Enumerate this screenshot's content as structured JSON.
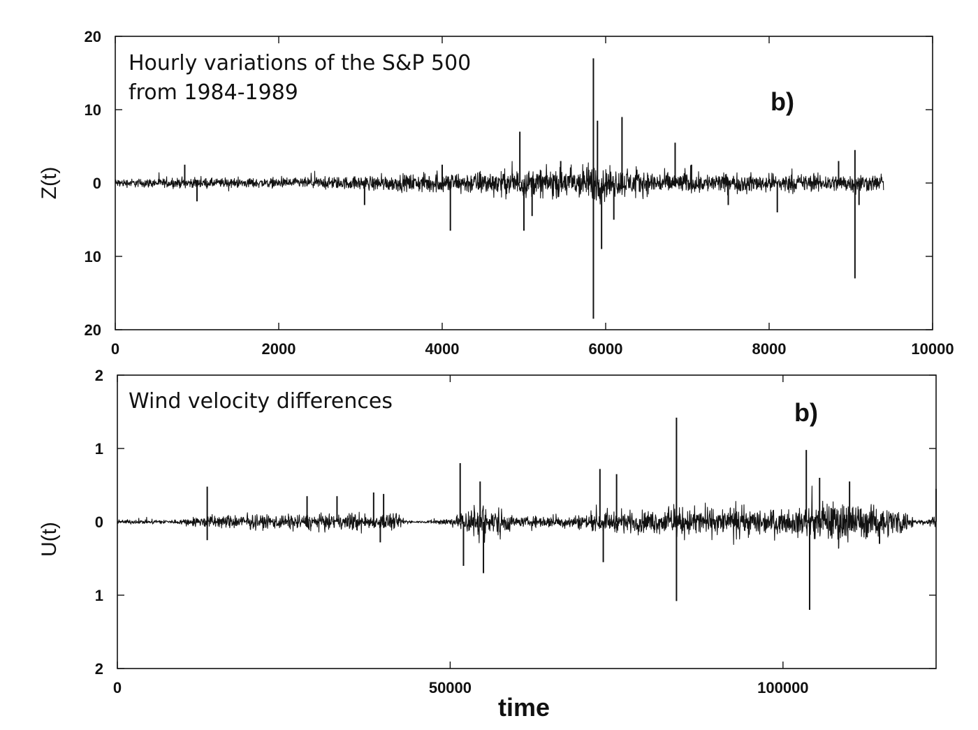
{
  "chart_data": [
    {
      "type": "line",
      "title": "",
      "annotation_lines": [
        "Hourly variations of the S&P 500",
        "from 1984-1989"
      ],
      "panel_label": "b)",
      "xlabel": "",
      "ylabel": "Z(t)",
      "xlim": [
        0,
        10000
      ],
      "ylim": [
        -20,
        20
      ],
      "xticks": [
        0,
        2000,
        4000,
        6000,
        8000,
        10000
      ],
      "xtick_labels": [
        "0",
        "2000",
        "4000",
        "6000",
        "8000",
        "10000"
      ],
      "yticks": [
        20,
        10,
        0,
        -10,
        -20
      ],
      "ytick_labels": [
        "20",
        "10",
        "0",
        "10",
        "20"
      ],
      "grid": false,
      "legend": "none",
      "series_color": "#111111",
      "series": [
        {
          "data_extent_x": [
            0,
            9400
          ],
          "envelope_x": [
            0,
            1000,
            2000,
            3000,
            4000,
            5000,
            5500,
            5850,
            6000,
            6500,
            7000,
            8000,
            9000,
            9400
          ],
          "envelope_amp": [
            0.8,
            0.9,
            0.9,
            1.3,
            1.9,
            2.6,
            2.9,
            3.8,
            2.9,
            2.3,
            1.9,
            1.7,
            1.7,
            1.5
          ],
          "spikes": [
            {
              "x": 850,
              "y": 2.5
            },
            {
              "x": 1000,
              "y": -2.5
            },
            {
              "x": 3050,
              "y": -3.0
            },
            {
              "x": 4000,
              "y": 2.5
            },
            {
              "x": 4100,
              "y": -6.5
            },
            {
              "x": 4950,
              "y": 7.0
            },
            {
              "x": 5000,
              "y": -6.5
            },
            {
              "x": 5100,
              "y": -4.5
            },
            {
              "x": 5450,
              "y": 3.0
            },
            {
              "x": 5850,
              "y": 17.0
            },
            {
              "x": 5850,
              "y": -18.5
            },
            {
              "x": 5900,
              "y": 8.5
            },
            {
              "x": 5950,
              "y": -9.0
            },
            {
              "x": 6100,
              "y": -5.0
            },
            {
              "x": 6200,
              "y": 9.0
            },
            {
              "x": 6850,
              "y": 5.5
            },
            {
              "x": 7050,
              "y": 2.5
            },
            {
              "x": 7500,
              "y": -3.0
            },
            {
              "x": 8100,
              "y": -4.0
            },
            {
              "x": 8850,
              "y": 3.0
            },
            {
              "x": 9050,
              "y": 4.5
            },
            {
              "x": 9050,
              "y": -13.0
            },
            {
              "x": 9100,
              "y": -3.0
            }
          ]
        }
      ]
    },
    {
      "type": "line",
      "title": "",
      "annotation_lines": [
        "Wind velocity differences"
      ],
      "panel_label": "b)",
      "xlabel": "time",
      "ylabel": "U(t)",
      "xlim": [
        0,
        123000
      ],
      "ylim": [
        -2,
        2
      ],
      "xticks": [
        0,
        50000,
        100000
      ],
      "xtick_labels": [
        "0",
        "50000",
        "100000"
      ],
      "yticks": [
        2,
        1,
        0,
        -1,
        -2
      ],
      "ytick_labels": [
        "2",
        "1",
        "0",
        "1",
        "2"
      ],
      "grid": false,
      "legend": "none",
      "series_color": "#111111",
      "series": [
        {
          "data_extent_x": [
            0,
            123000
          ],
          "envelope_x": [
            0,
            9000,
            13000,
            30000,
            33500,
            36000,
            39000,
            40000,
            42000,
            44000,
            46000,
            51000,
            52500,
            54500,
            56000,
            57500,
            58500,
            60000,
            64000,
            66000,
            70000,
            76000,
            80000,
            84000,
            88000,
            92000,
            96000,
            100000,
            104000,
            106000,
            108500,
            110000,
            113000,
            116000,
            118000,
            120000,
            121500,
            123000
          ],
          "envelope_amp": [
            0.04,
            0.04,
            0.12,
            0.15,
            0.12,
            0.2,
            0.1,
            0.18,
            0.15,
            0.02,
            0.02,
            0.1,
            0.28,
            0.4,
            0.2,
            0.32,
            0.2,
            0.08,
            0.12,
            0.1,
            0.15,
            0.2,
            0.22,
            0.26,
            0.28,
            0.24,
            0.27,
            0.2,
            0.3,
            0.32,
            0.45,
            0.38,
            0.3,
            0.28,
            0.25,
            0.06,
            0.03,
            0.15
          ],
          "spikes": [
            {
              "x": 13500,
              "y": 0.48
            },
            {
              "x": 13500,
              "y": -0.25
            },
            {
              "x": 28500,
              "y": 0.35
            },
            {
              "x": 33000,
              "y": 0.35
            },
            {
              "x": 38500,
              "y": 0.4
            },
            {
              "x": 40000,
              "y": 0.38
            },
            {
              "x": 39500,
              "y": -0.28
            },
            {
              "x": 51500,
              "y": 0.8
            },
            {
              "x": 52000,
              "y": -0.6
            },
            {
              "x": 54500,
              "y": 0.55
            },
            {
              "x": 55000,
              "y": -0.7
            },
            {
              "x": 72500,
              "y": 0.72
            },
            {
              "x": 73000,
              "y": -0.55
            },
            {
              "x": 75000,
              "y": 0.65
            },
            {
              "x": 84000,
              "y": 1.42
            },
            {
              "x": 84000,
              "y": -1.08
            },
            {
              "x": 103500,
              "y": 0.98
            },
            {
              "x": 104000,
              "y": -1.2
            },
            {
              "x": 105500,
              "y": 0.6
            },
            {
              "x": 110000,
              "y": 0.55
            },
            {
              "x": 114500,
              "y": -0.3
            },
            {
              "x": 123000,
              "y": 0.45
            }
          ]
        }
      ]
    }
  ]
}
